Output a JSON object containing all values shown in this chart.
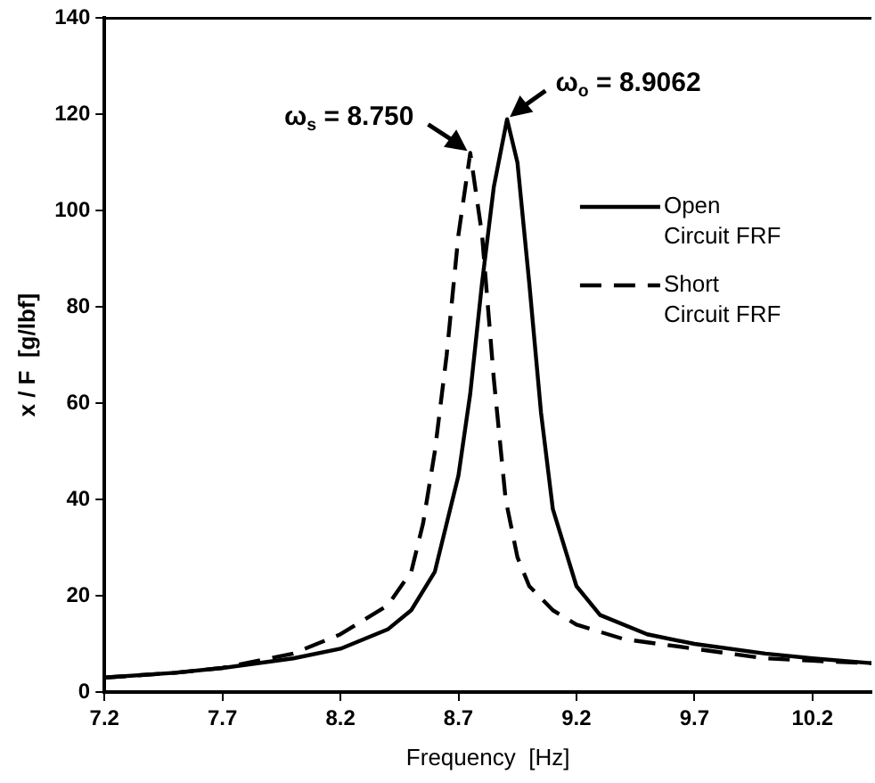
{
  "chart_data": {
    "type": "line",
    "xlabel": "Frequency  [Hz]",
    "ylabel": "x / F  [g/lbf]",
    "xlim": [
      7.2,
      10.45
    ],
    "xticks": [
      7.2,
      7.7,
      8.2,
      8.7,
      9.2,
      9.7,
      10.2
    ],
    "ylim": [
      0,
      140
    ],
    "yticks": [
      0,
      20,
      40,
      60,
      80,
      100,
      120,
      140
    ],
    "grid": false,
    "legend": "right",
    "marker": "none",
    "series": [
      {
        "name": "Open Circuit FRF",
        "color": "#000000",
        "line_style": "solid",
        "x": [
          7.2,
          7.5,
          7.7,
          8.0,
          8.2,
          8.4,
          8.5,
          8.6,
          8.7,
          8.75,
          8.8,
          8.85,
          8.906,
          8.95,
          9.0,
          9.05,
          9.1,
          9.2,
          9.3,
          9.5,
          9.7,
          10.0,
          10.2,
          10.45
        ],
        "values": [
          3,
          4,
          5,
          7,
          9,
          13,
          17,
          25,
          45,
          62,
          85,
          105,
          119,
          110,
          85,
          58,
          38,
          22,
          16,
          12,
          10,
          8,
          7,
          6
        ]
      },
      {
        "name": "Short Circuit FRF",
        "color": "#000000",
        "line_style": "dashed",
        "x": [
          7.2,
          7.5,
          7.7,
          8.0,
          8.2,
          8.4,
          8.5,
          8.55,
          8.6,
          8.65,
          8.7,
          8.75,
          8.8,
          8.85,
          8.9,
          8.95,
          9.0,
          9.1,
          9.2,
          9.4,
          9.7,
          10.0,
          10.2,
          10.45
        ],
        "values": [
          3,
          4,
          5,
          8,
          12,
          18,
          25,
          35,
          50,
          70,
          95,
          112,
          95,
          65,
          40,
          28,
          22,
          17,
          14,
          11,
          9,
          7,
          6.5,
          6
        ]
      }
    ],
    "annotations": [
      {
        "text": "ω$_{s}$ = 8.750",
        "x": 8.75,
        "y": 112
      },
      {
        "text": "ω$_{o}$ = 8.9062",
        "x": 8.906,
        "y": 119
      }
    ]
  }
}
